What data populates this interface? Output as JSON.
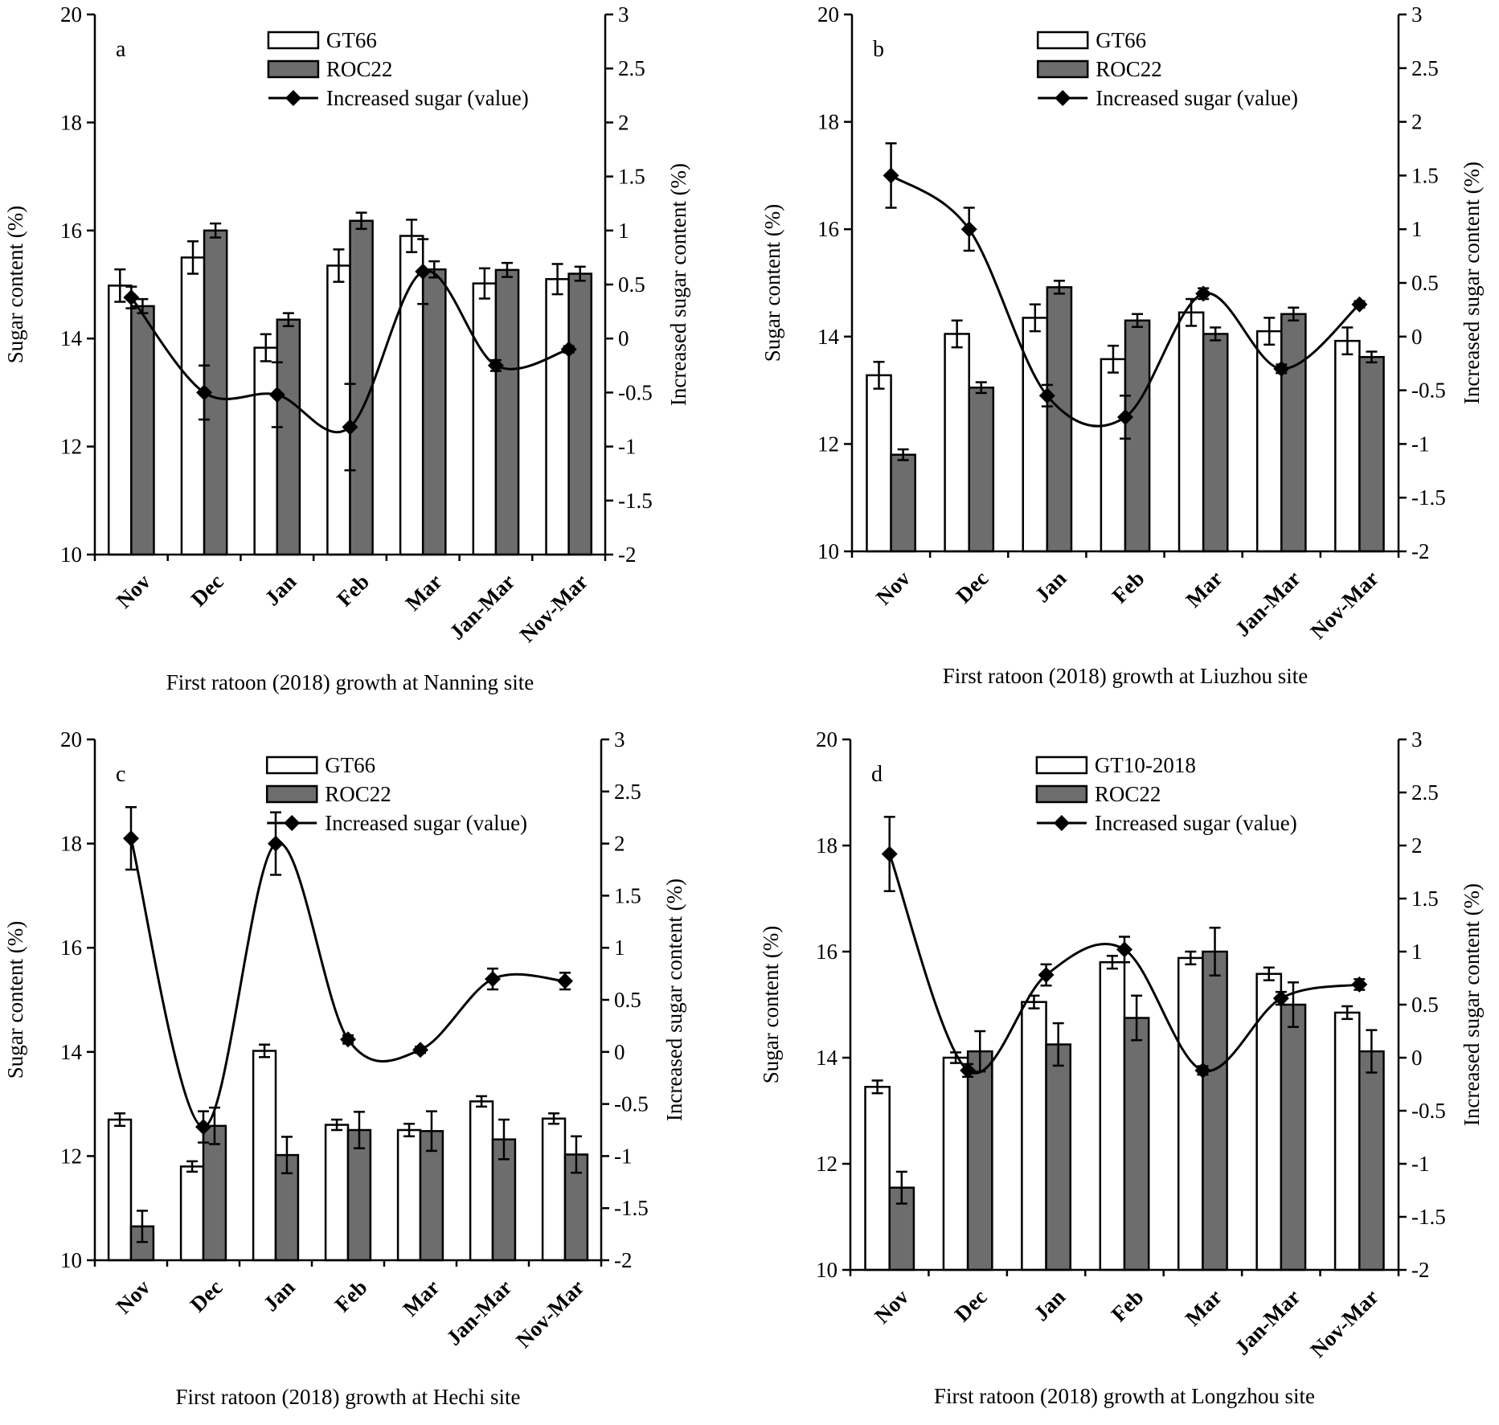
{
  "chart_data": [
    {
      "type": "bar",
      "panel_label": "a",
      "caption": "First ratoon (2018) growth at Nanning site",
      "categories": [
        "Nov",
        "Dec",
        "Jan",
        "Feb",
        "Mar",
        "Jan-Mar",
        "Nov-Mar"
      ],
      "ylabel": "Sugar content (%)",
      "y2label": "Increased sugar content (%)",
      "ylim": [
        10,
        20
      ],
      "yticks": [
        10,
        12,
        14,
        16,
        18,
        20
      ],
      "y2lim": [
        -2,
        3
      ],
      "y2ticks": [
        "3",
        "2.5",
        "2",
        "1.5",
        "1",
        "0.5",
        "0",
        "-0.5",
        "-1",
        "-1.5",
        "-2"
      ],
      "legend": [
        "GT66",
        "ROC22",
        "Increased sugar (value)"
      ],
      "legend_position": "top-center",
      "series": [
        {
          "name": "GT66",
          "kind": "bar",
          "color": "#ffffff",
          "values": [
            14.98,
            15.5,
            13.83,
            15.35,
            15.9,
            15.02,
            15.1
          ],
          "errors": [
            0.3,
            0.3,
            0.25,
            0.3,
            0.3,
            0.28,
            0.28
          ]
        },
        {
          "name": "ROC22",
          "kind": "bar",
          "color": "#6d6d6d",
          "values": [
            14.6,
            16.0,
            14.35,
            16.18,
            15.28,
            15.27,
            15.2
          ],
          "errors": [
            0.13,
            0.13,
            0.12,
            0.15,
            0.15,
            0.13,
            0.13
          ]
        },
        {
          "name": "Increased sugar (value)",
          "kind": "line",
          "axis": "right",
          "color": "#000000",
          "values": [
            0.38,
            -0.5,
            -0.52,
            -0.82,
            0.62,
            -0.25,
            -0.1
          ],
          "errors": [
            0.1,
            0.25,
            0.3,
            0.4,
            0.3,
            0.05,
            0.03
          ]
        }
      ]
    },
    {
      "type": "bar",
      "panel_label": "b",
      "caption": "First ratoon (2018) growth at Liuzhou site",
      "categories": [
        "Nov",
        "Dec",
        "Jan",
        "Feb",
        "Mar",
        "Jan-Mar",
        "Nov-Mar"
      ],
      "ylabel": "Sugar content (%)",
      "y2label": "Increased sugar content (%)",
      "ylim": [
        10,
        20
      ],
      "yticks": [
        10,
        12,
        14,
        16,
        18,
        20
      ],
      "y2lim": [
        -2,
        3
      ],
      "y2ticks": [
        "3",
        "2.5",
        "2",
        "1.5",
        "1",
        "0.5",
        "0",
        "-0.5",
        "-1",
        "-1.5",
        "-2"
      ],
      "legend": [
        "GT66",
        "ROC22",
        "Increased sugar (value)"
      ],
      "legend_position": "top-center",
      "series": [
        {
          "name": "GT66",
          "kind": "bar",
          "color": "#ffffff",
          "values": [
            13.28,
            14.05,
            14.35,
            13.58,
            14.45,
            14.1,
            13.92
          ],
          "errors": [
            0.25,
            0.25,
            0.25,
            0.25,
            0.25,
            0.25,
            0.25
          ]
        },
        {
          "name": "ROC22",
          "kind": "bar",
          "color": "#6d6d6d",
          "values": [
            11.8,
            13.05,
            14.92,
            14.3,
            14.05,
            14.42,
            13.62
          ],
          "errors": [
            0.1,
            0.1,
            0.12,
            0.12,
            0.12,
            0.12,
            0.1
          ]
        },
        {
          "name": "Increased sugar (value)",
          "kind": "line",
          "axis": "right",
          "color": "#000000",
          "values": [
            1.5,
            1.0,
            -0.55,
            -0.75,
            0.4,
            -0.3,
            0.3
          ],
          "errors": [
            0.3,
            0.2,
            0.1,
            0.2,
            0.05,
            0.04,
            0.03
          ]
        }
      ]
    },
    {
      "type": "bar",
      "panel_label": "c",
      "caption": "First ratoon (2018) growth at Hechi site",
      "categories": [
        "Nov",
        "Dec",
        "Jan",
        "Feb",
        "Mar",
        "Jan-Mar",
        "Nov-Mar"
      ],
      "ylabel": "Sugar content (%)",
      "y2label": "Increased sugar content (%)",
      "ylim": [
        10,
        20
      ],
      "yticks": [
        10,
        12,
        14,
        16,
        18,
        20
      ],
      "y2lim": [
        -2,
        3
      ],
      "y2ticks": [
        "3",
        "2.5",
        "2",
        "1.5",
        "1",
        "0.5",
        "0",
        "-0.5",
        "-1",
        "-1.5",
        "-2"
      ],
      "legend": [
        "GT66",
        "ROC22",
        "Increased sugar (value)"
      ],
      "legend_position": "top-center",
      "series": [
        {
          "name": "GT66",
          "kind": "bar",
          "color": "#ffffff",
          "values": [
            12.7,
            11.8,
            14.02,
            12.6,
            12.5,
            13.05,
            12.72
          ],
          "errors": [
            0.12,
            0.1,
            0.12,
            0.1,
            0.12,
            0.1,
            0.1
          ]
        },
        {
          "name": "ROC22",
          "kind": "bar",
          "color": "#6d6d6d",
          "values": [
            10.65,
            12.58,
            12.02,
            12.5,
            12.48,
            12.32,
            12.03
          ],
          "errors": [
            0.3,
            0.35,
            0.35,
            0.35,
            0.38,
            0.38,
            0.35
          ]
        },
        {
          "name": "Increased sugar (value)",
          "kind": "line",
          "axis": "right",
          "color": "#000000",
          "values": [
            2.05,
            -0.72,
            2.0,
            0.12,
            0.02,
            0.7,
            0.68
          ],
          "errors": [
            0.3,
            0.15,
            0.3,
            0.04,
            0.03,
            0.1,
            0.08
          ]
        }
      ]
    },
    {
      "type": "bar",
      "panel_label": "d",
      "caption": "First ratoon (2018) growth at Longzhou site",
      "categories": [
        "Nov",
        "Dec",
        "Jan",
        "Feb",
        "Mar",
        "Jan-Mar",
        "Nov-Mar"
      ],
      "ylabel": "Sugar content (%)",
      "y2label": "Increased sugar content (%)",
      "ylim": [
        10,
        20
      ],
      "yticks": [
        10,
        12,
        14,
        16,
        18,
        20
      ],
      "y2lim": [
        -2,
        3
      ],
      "y2ticks": [
        "3",
        "2.5",
        "2",
        "1.5",
        "1",
        "0.5",
        "0",
        "-0.5",
        "-1",
        "-1.5",
        "-2"
      ],
      "legend": [
        "GT10-2018",
        "ROC22",
        "Increased sugar (value)"
      ],
      "legend_position": "top-center",
      "series": [
        {
          "name": "GT10-2018",
          "kind": "bar",
          "color": "#ffffff",
          "values": [
            13.45,
            14.0,
            15.05,
            15.8,
            15.88,
            15.58,
            14.85
          ],
          "errors": [
            0.12,
            0.1,
            0.12,
            0.12,
            0.12,
            0.12,
            0.12
          ]
        },
        {
          "name": "ROC22",
          "kind": "bar",
          "color": "#6d6d6d",
          "values": [
            11.55,
            14.12,
            14.25,
            14.75,
            16.0,
            15.0,
            14.12
          ],
          "errors": [
            0.3,
            0.38,
            0.4,
            0.42,
            0.45,
            0.42,
            0.4
          ]
        },
        {
          "name": "Increased sugar (value)",
          "kind": "line",
          "axis": "right",
          "color": "#000000",
          "values": [
            1.92,
            -0.12,
            0.78,
            1.02,
            -0.12,
            0.56,
            0.69
          ],
          "errors": [
            0.35,
            0.06,
            0.1,
            0.12,
            0.04,
            0.06,
            0.05
          ]
        }
      ]
    }
  ]
}
